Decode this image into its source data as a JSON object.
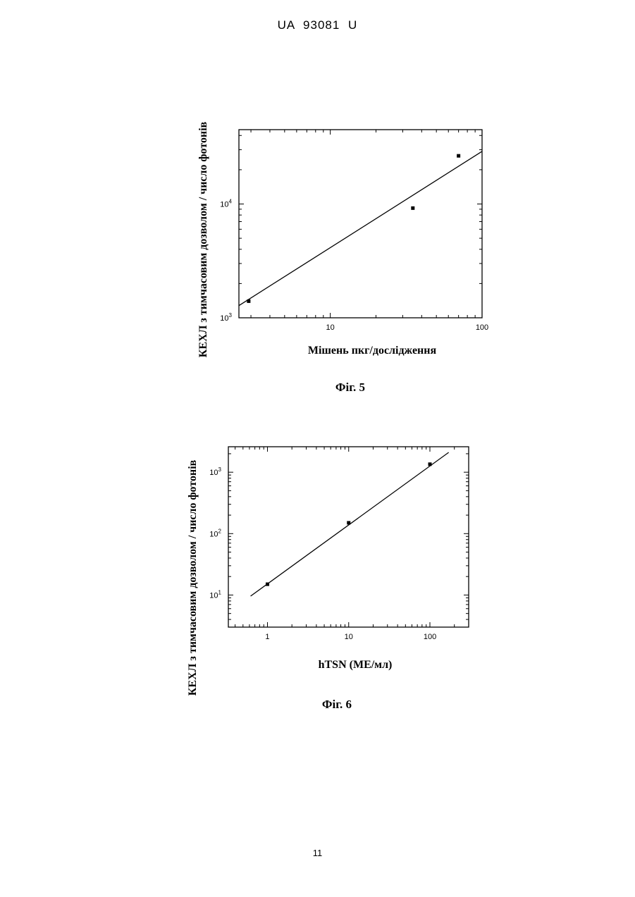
{
  "header": {
    "doc_id": "UA  93081  U"
  },
  "page_number": "11",
  "chart_data": [
    {
      "type": "scatter",
      "figure_label": "Фіг. 5",
      "title": "",
      "xlabel": "Мішень пкг/дослідження",
      "ylabel": "КЕХЛ з тимчасовим дозволом / число фотонів",
      "xscale": "log",
      "yscale": "log",
      "xlim": [
        2.5,
        100
      ],
      "ylim": [
        1000,
        45000
      ],
      "x_ticks": [
        {
          "value": 10,
          "label": "10"
        },
        {
          "value": 100,
          "label": "100"
        }
      ],
      "y_ticks": [
        {
          "value": 1000,
          "base": "10",
          "exp": "3"
        },
        {
          "value": 10000,
          "base": "10",
          "exp": "4"
        }
      ],
      "points": [
        {
          "x": 2.9,
          "y": 1400
        },
        {
          "x": 35,
          "y": 9200
        },
        {
          "x": 70,
          "y": 26500
        }
      ],
      "fit_line": {
        "x": [
          2.5,
          100
        ],
        "y": [
          1280,
          29000
        ]
      },
      "grid": false,
      "legend": "none"
    },
    {
      "type": "scatter",
      "figure_label": "Фіг. 6",
      "title": "",
      "xlabel": "hTSN  (МЕ/мл)",
      "ylabel": "КЕХЛ з тимчасовим дозволом / число фотонів",
      "xscale": "log",
      "yscale": "log",
      "xlim": [
        0.33,
        300
      ],
      "ylim": [
        3,
        2600
      ],
      "x_ticks": [
        {
          "value": 1,
          "label": "1"
        },
        {
          "value": 10,
          "label": "10"
        },
        {
          "value": 100,
          "label": "100"
        }
      ],
      "y_ticks": [
        {
          "value": 10,
          "base": "10",
          "exp": "1"
        },
        {
          "value": 100,
          "base": "10",
          "exp": "2"
        },
        {
          "value": 1000,
          "base": "10",
          "exp": "3"
        }
      ],
      "points": [
        {
          "x": 1,
          "y": 15
        },
        {
          "x": 10,
          "y": 150
        },
        {
          "x": 100,
          "y": 1350
        }
      ],
      "fit_line": {
        "x": [
          0.62,
          170
        ],
        "y": [
          9.6,
          2100
        ]
      },
      "grid": false,
      "legend": "none"
    }
  ]
}
